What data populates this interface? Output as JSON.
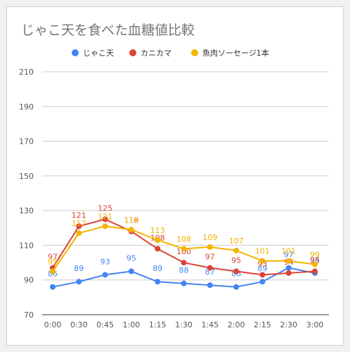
{
  "title": "じゃこ天を食べた血糖値比較",
  "chart_data": {
    "type": "line",
    "categories": [
      "0:00",
      "0:30",
      "0:45",
      "1:00",
      "1:15",
      "1:30",
      "1:45",
      "2:00",
      "2:15",
      "2:30",
      "3:00"
    ],
    "ylim": [
      70,
      210
    ],
    "yticks": [
      70,
      90,
      110,
      130,
      150,
      170,
      190,
      210
    ],
    "grid": true,
    "legend_position": "top",
    "series": [
      {
        "name": "じゃこ天",
        "color": "#4285f4",
        "values": [
          86,
          89,
          93,
          95,
          89,
          88,
          87,
          86,
          89,
          97,
          94
        ]
      },
      {
        "name": "カニカマ",
        "color": "#db4437",
        "values": [
          97,
          121,
          125,
          118,
          108,
          100,
          97,
          95,
          93,
          94,
          95
        ]
      },
      {
        "name": "魚肉ソーセージ1本",
        "color": "#f4b400",
        "values": [
          95,
          117,
          121,
          119,
          113,
          108,
          109,
          107,
          101,
          101,
          99
        ]
      }
    ]
  }
}
